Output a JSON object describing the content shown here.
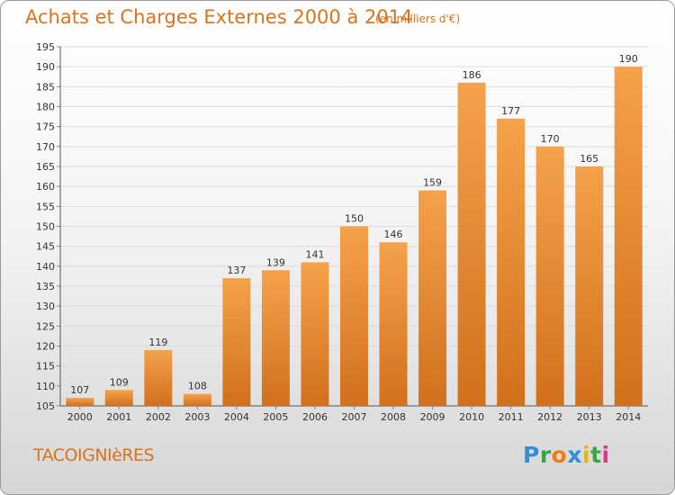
{
  "title": "Achats et Charges Externes 2000 à 2014",
  "unit_note": "(en milliers d'€)",
  "commune": "TACOIGNIèRES",
  "logo": {
    "letters": [
      {
        "char": "P",
        "color": "#2f8fd8"
      },
      {
        "char": "r",
        "color": "#3aa34a"
      },
      {
        "char": "o",
        "color": "#f07d1a"
      },
      {
        "char": "x",
        "color": "#2f8fd8"
      },
      {
        "char": "i",
        "color": "#e8b800"
      },
      {
        "char": "t",
        "color": "#3aa34a"
      },
      {
        "char": "i",
        "color": "#d63a8a"
      }
    ]
  },
  "colors": {
    "title": "#d8731e",
    "bar_light": "#f5a24a",
    "bar_dark": "#d2701c"
  },
  "chart_data": {
    "type": "bar",
    "title": "Achats et Charges Externes 2000 à 2014",
    "subtitle": "(en milliers d'€)",
    "categories": [
      "2000",
      "2001",
      "2002",
      "2003",
      "2004",
      "2005",
      "2006",
      "2007",
      "2008",
      "2009",
      "2010",
      "2011",
      "2012",
      "2013",
      "2014"
    ],
    "values": [
      107,
      109,
      119,
      108,
      137,
      139,
      141,
      150,
      146,
      159,
      186,
      177,
      170,
      165,
      190
    ],
    "ylim": [
      105,
      195
    ],
    "yticks": [
      105,
      110,
      115,
      120,
      125,
      130,
      135,
      140,
      145,
      150,
      155,
      160,
      165,
      170,
      175,
      180,
      185,
      190,
      195
    ],
    "grid": true,
    "xlabel": "",
    "ylabel": ""
  }
}
